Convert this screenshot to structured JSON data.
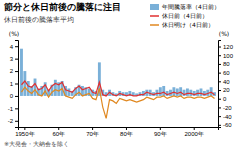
{
  "chart_data": {
    "type": "bar",
    "title": "節分と休日前後の騰落に注目",
    "subtitle": "休日前後の騰落率平均",
    "annotations": [
      "※大発会・大納会を除く"
    ],
    "y_label": "(%)",
    "y2_label": "(%)",
    "categories": [
      null,
      "1950年",
      null,
      null,
      null,
      null,
      null,
      null,
      null,
      null,
      null,
      "60年",
      null,
      null,
      null,
      null,
      null,
      null,
      null,
      null,
      null,
      "70年",
      null,
      null,
      null,
      null,
      null,
      null,
      null,
      null,
      null,
      "80年",
      null,
      null,
      null,
      null,
      null,
      null,
      null,
      null,
      null,
      "90年",
      null,
      null,
      null,
      null,
      null,
      null,
      null,
      null,
      null,
      "2000年",
      null,
      null,
      null,
      null,
      null,
      null
    ],
    "series": [
      {
        "name": "年間騰落率（4日前）",
        "type": "bar",
        "color": "#7ab0d8",
        "values": [
          3.8,
          2.0,
          1.2,
          0.8,
          1.4,
          0.6,
          0.8,
          1.1,
          0.5,
          0.9,
          1.3,
          1.1,
          1.2,
          0.8,
          0.6,
          0.4,
          0.7,
          0.9,
          0.8,
          0.7,
          0.6,
          0.5,
          0.4,
          2.7,
          0.5,
          0.3,
          0.5,
          0.3,
          0.2,
          0.4,
          0.3,
          0.3,
          0.4,
          0.3,
          0.2,
          0.3,
          0.4,
          0.5,
          0.5,
          0.3,
          0.5,
          0.7,
          0.8,
          0.4,
          0.5,
          0.7,
          0.6,
          0.7,
          0.5,
          0.6,
          0.5,
          0.4,
          0.5,
          0.6,
          0.4,
          0.5,
          0.7,
          0.3
        ]
      },
      {
        "name": "休日前（4日前）",
        "type": "line",
        "color": "#e03030",
        "values": [
          0.9,
          1.2,
          0.8,
          0.7,
          1.0,
          0.5,
          0.6,
          0.9,
          0.4,
          0.8,
          1.0,
          0.9,
          1.1,
          0.5,
          0.4,
          0.3,
          0.6,
          0.8,
          0.5,
          0.6,
          0.7,
          0.3,
          0.2,
          1.1,
          0.1,
          0.0,
          0.3,
          0.1,
          0.0,
          0.2,
          0.1,
          0.0,
          0.1,
          0.0,
          0.0,
          0.1,
          0.1,
          0.3,
          0.2,
          0.1,
          0.2,
          0.2,
          0.3,
          0.1,
          0.2,
          0.3,
          0.2,
          0.3,
          0.1,
          0.2,
          0.2,
          0.1,
          0.2,
          0.2,
          0.1,
          0.2,
          0.3,
          0.1
        ]
      },
      {
        "name": "休日明け（4日前）",
        "type": "line",
        "color": "#e08820",
        "values": [
          0.3,
          0.7,
          0.4,
          0.2,
          0.5,
          0.1,
          0.0,
          0.4,
          -0.1,
          0.3,
          0.5,
          0.4,
          0.6,
          0.0,
          -0.1,
          -0.2,
          0.1,
          0.3,
          0.0,
          0.1,
          0.2,
          -0.2,
          -0.3,
          0.6,
          -0.9,
          -1.8,
          -0.3,
          -0.4,
          -0.6,
          -0.2,
          -0.3,
          -0.4,
          -0.3,
          -0.4,
          -0.5,
          -0.4,
          -0.3,
          -0.1,
          -0.2,
          -0.3,
          -0.1,
          -0.1,
          0.0,
          -0.2,
          -0.1,
          0.0,
          -0.1,
          0.0,
          -0.2,
          -0.1,
          -0.1,
          -0.2,
          -0.1,
          -0.1,
          -0.2,
          -0.1,
          0.0,
          -0.2
        ]
      }
    ],
    "ylim": [
      -2.5,
      4.5
    ],
    "yticks": [
      -2,
      -1,
      0,
      1,
      2,
      3,
      4
    ],
    "y2lim": [
      -65,
      135
    ],
    "y2ticks": [
      -60,
      -40,
      -20,
      0,
      20,
      40,
      60,
      80,
      100,
      120
    ],
    "grid": false
  }
}
